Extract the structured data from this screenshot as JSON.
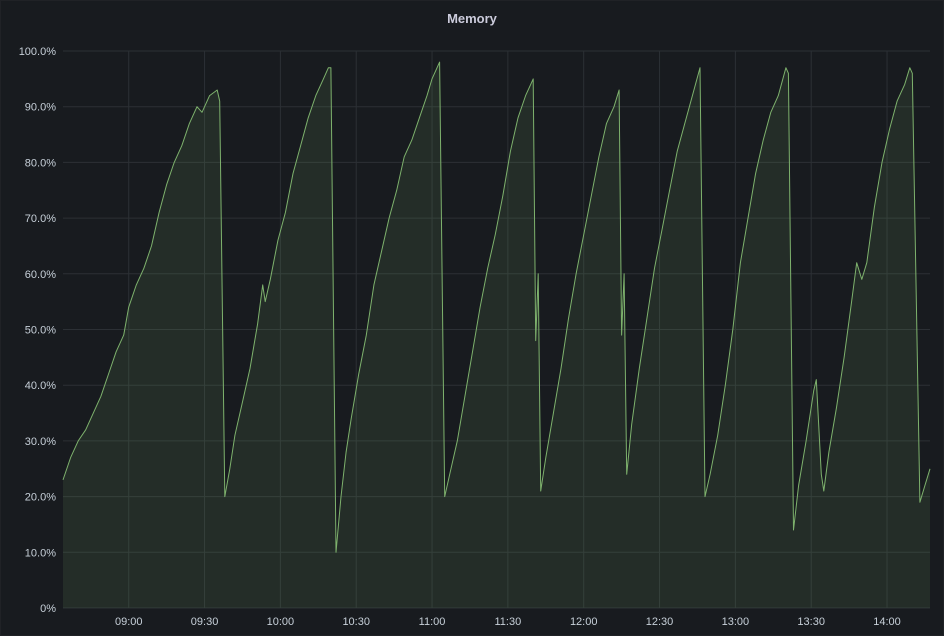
{
  "panel": {
    "title": "Memory"
  },
  "chart_data": {
    "type": "area",
    "title": "Memory",
    "xlabel": "",
    "ylabel": "",
    "ylim": [
      0,
      100
    ],
    "y_ticks": [
      "0%",
      "10.0%",
      "20.0%",
      "30.0%",
      "40.0%",
      "50.0%",
      "60.0%",
      "70.0%",
      "80.0%",
      "90.0%",
      "100.0%"
    ],
    "x_ticks": [
      "09:00",
      "09:30",
      "10:00",
      "10:30",
      "11:00",
      "11:30",
      "12:00",
      "12:30",
      "13:00",
      "13:30",
      "14:00"
    ],
    "x_range": [
      "08:34",
      "14:17"
    ],
    "grid": true,
    "colors": {
      "line": "#7eb26d",
      "fill": "rgba(126,178,109,0.12)"
    },
    "series": [
      {
        "values": [
          [
            "08:34",
            23
          ],
          [
            "08:37",
            27
          ],
          [
            "08:40",
            30
          ],
          [
            "08:43",
            32
          ],
          [
            "08:46",
            35
          ],
          [
            "08:49",
            38
          ],
          [
            "08:52",
            42
          ],
          [
            "08:55",
            46
          ],
          [
            "08:58",
            49
          ],
          [
            "09:00",
            54
          ],
          [
            "09:03",
            58
          ],
          [
            "09:06",
            61
          ],
          [
            "09:09",
            65
          ],
          [
            "09:12",
            71
          ],
          [
            "09:15",
            76
          ],
          [
            "09:18",
            80
          ],
          [
            "09:21",
            83
          ],
          [
            "09:24",
            87
          ],
          [
            "09:27",
            90
          ],
          [
            "09:29",
            89
          ],
          [
            "09:32",
            92
          ],
          [
            "09:35",
            93
          ],
          [
            "09:36",
            91
          ],
          [
            "09:38",
            20
          ],
          [
            "09:40",
            25
          ],
          [
            "09:42",
            31
          ],
          [
            "09:45",
            37
          ],
          [
            "09:48",
            43
          ],
          [
            "09:51",
            51
          ],
          [
            "09:53",
            58
          ],
          [
            "09:54",
            55
          ],
          [
            "09:56",
            59
          ],
          [
            "09:59",
            66
          ],
          [
            "10:02",
            71
          ],
          [
            "10:05",
            78
          ],
          [
            "10:08",
            83
          ],
          [
            "10:11",
            88
          ],
          [
            "10:14",
            92
          ],
          [
            "10:17",
            95
          ],
          [
            "10:19",
            97
          ],
          [
            "10:20",
            97
          ],
          [
            "10:22",
            10
          ],
          [
            "10:24",
            20
          ],
          [
            "10:26",
            28
          ],
          [
            "10:28",
            34
          ],
          [
            "10:31",
            42
          ],
          [
            "10:34",
            49
          ],
          [
            "10:37",
            58
          ],
          [
            "10:40",
            64
          ],
          [
            "10:43",
            70
          ],
          [
            "10:46",
            75
          ],
          [
            "10:49",
            81
          ],
          [
            "10:52",
            84
          ],
          [
            "10:55",
            88
          ],
          [
            "10:58",
            92
          ],
          [
            "11:00",
            95
          ],
          [
            "11:03",
            98
          ],
          [
            "11:05",
            20
          ],
          [
            "11:07",
            24
          ],
          [
            "11:10",
            30
          ],
          [
            "11:13",
            38
          ],
          [
            "11:16",
            46
          ],
          [
            "11:19",
            54
          ],
          [
            "11:22",
            61
          ],
          [
            "11:25",
            67
          ],
          [
            "11:28",
            74
          ],
          [
            "11:31",
            82
          ],
          [
            "11:34",
            88
          ],
          [
            "11:37",
            92
          ],
          [
            "11:40",
            95
          ],
          [
            "11:41",
            48
          ],
          [
            "11:42",
            60
          ],
          [
            "11:43",
            21
          ],
          [
            "11:45",
            27
          ],
          [
            "11:48",
            35
          ],
          [
            "11:51",
            43
          ],
          [
            "11:54",
            52
          ],
          [
            "11:57",
            60
          ],
          [
            "12:00",
            67
          ],
          [
            "12:03",
            74
          ],
          [
            "12:06",
            81
          ],
          [
            "12:09",
            87
          ],
          [
            "12:12",
            90
          ],
          [
            "12:14",
            93
          ],
          [
            "12:15",
            49
          ],
          [
            "12:16",
            60
          ],
          [
            "12:17",
            24
          ],
          [
            "12:19",
            33
          ],
          [
            "12:22",
            43
          ],
          [
            "12:25",
            52
          ],
          [
            "12:28",
            61
          ],
          [
            "12:31",
            68
          ],
          [
            "12:34",
            75
          ],
          [
            "12:37",
            82
          ],
          [
            "12:40",
            87
          ],
          [
            "12:43",
            92
          ],
          [
            "12:46",
            97
          ],
          [
            "12:48",
            20
          ],
          [
            "12:50",
            24
          ],
          [
            "12:53",
            31
          ],
          [
            "12:56",
            40
          ],
          [
            "12:59",
            50
          ],
          [
            "13:02",
            62
          ],
          [
            "13:05",
            70
          ],
          [
            "13:08",
            78
          ],
          [
            "13:11",
            84
          ],
          [
            "13:14",
            89
          ],
          [
            "13:17",
            92
          ],
          [
            "13:20",
            97
          ],
          [
            "13:21",
            96
          ],
          [
            "13:23",
            14
          ],
          [
            "13:25",
            22
          ],
          [
            "13:28",
            30
          ],
          [
            "13:31",
            39
          ],
          [
            "13:32",
            41
          ],
          [
            "13:34",
            24
          ],
          [
            "13:35",
            21
          ],
          [
            "13:37",
            28
          ],
          [
            "13:40",
            36
          ],
          [
            "13:43",
            45
          ],
          [
            "13:46",
            55
          ],
          [
            "13:48",
            62
          ],
          [
            "13:50",
            59
          ],
          [
            "13:52",
            62
          ],
          [
            "13:55",
            72
          ],
          [
            "13:58",
            80
          ],
          [
            "14:01",
            86
          ],
          [
            "14:04",
            91
          ],
          [
            "14:07",
            94
          ],
          [
            "14:09",
            97
          ],
          [
            "14:10",
            96
          ],
          [
            "14:13",
            19
          ],
          [
            "14:15",
            22
          ],
          [
            "14:17",
            25
          ]
        ]
      }
    ]
  }
}
